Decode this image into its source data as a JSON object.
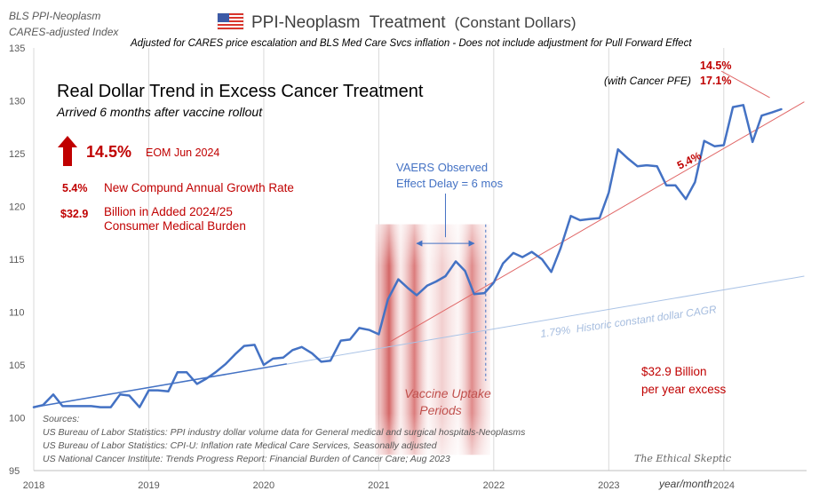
{
  "header": {
    "source_label": "BLS PPI-Neoplasm",
    "source_sub": "CARES-adjusted Index",
    "title": "PPI-Neoplasm  Treatment",
    "title_suffix": "(Constant Dollars)",
    "subtitle": "Adjusted for CARES price escalation and BLS Med Care Svcs inflation - Does not include adjustment for Pull Forward Effect",
    "flag_icon": "us-flag-icon"
  },
  "panel": {
    "headline": "Real Dollar Trend in Excess Cancer Treatment",
    "subhead": "Arrived 6 months after vaccine rollout",
    "arrow_icon": "red-up-arrow-icon",
    "pct_value": "14.5%",
    "pct_note": "EOM Jun 2024",
    "cagr_value": "5.4%",
    "cagr_note": "New Compund Annual Growth Rate",
    "burden_value": "$32.9",
    "burden_note1": "Billion in Added 2024/25",
    "burden_note2": "Consumer Medical Burden"
  },
  "annotations": {
    "pfe_pct": "14.5%",
    "pfe_label": "(with Cancer PFE)",
    "pfe_value": "17.1%",
    "trend_label": "5.4%",
    "vaers_line1": "VAERS Observed",
    "vaers_line2": "Effect Delay = 6 mos",
    "historic_label": "1.79%  Historic constant dollar CAGR",
    "uptake_line1": "Vaccine Uptake",
    "uptake_line2": "Periods",
    "excess_line1": "$32.9 Billion",
    "excess_line2": "per year excess",
    "xaxis_label": "year/month",
    "watermark": "The Ethical Skeptic"
  },
  "sources": {
    "heading": "Sources:",
    "items": [
      "US Bureau of Labor Statistics: PPI industry dollar volume data for General medical and surgical hospitals-Neoplasms",
      "US Bureau of Labor Statistics: CPI-U: Inflation rate Medical Care Services, Seasonally adjusted",
      "US National Cancer Institute: Trends Progress Report: Financial Burden of Cancer Care; Aug 2023"
    ]
  },
  "colors": {
    "series": "#4472c4",
    "trend_red": "#e06666",
    "historic": "#aac3e6",
    "accent_red": "#c00000",
    "axis_text": "#595959",
    "grid": "#d9d9d9"
  },
  "chart_data": {
    "type": "line",
    "xlim": [
      2018.0,
      2024.72
    ],
    "ylim": [
      95,
      135
    ],
    "x_ticks": [
      2018,
      2019,
      2020,
      2021,
      2022,
      2023,
      2024
    ],
    "y_ticks": [
      95,
      100,
      105,
      110,
      115,
      120,
      125,
      130,
      135
    ],
    "grid": "vertical at year boundaries",
    "series": [
      {
        "values": [
          [
            2018.0,
            101.0
          ],
          [
            2018.08,
            101.2
          ],
          [
            2018.17,
            102.2
          ],
          [
            2018.25,
            101.1
          ],
          [
            2018.33,
            101.1
          ],
          [
            2018.42,
            101.1
          ],
          [
            2018.5,
            101.1
          ],
          [
            2018.58,
            101.0
          ],
          [
            2018.67,
            101.0
          ],
          [
            2018.75,
            102.2
          ],
          [
            2018.83,
            102.1
          ],
          [
            2018.92,
            101.0
          ],
          [
            2019.0,
            102.6
          ],
          [
            2019.08,
            102.6
          ],
          [
            2019.17,
            102.5
          ],
          [
            2019.25,
            104.3
          ],
          [
            2019.33,
            104.3
          ],
          [
            2019.42,
            103.2
          ],
          [
            2019.5,
            103.7
          ],
          [
            2019.58,
            104.3
          ],
          [
            2019.67,
            105.1
          ],
          [
            2019.75,
            106.0
          ],
          [
            2019.83,
            106.8
          ],
          [
            2019.92,
            106.9
          ],
          [
            2020.0,
            105.0
          ],
          [
            2020.08,
            105.6
          ],
          [
            2020.17,
            105.7
          ],
          [
            2020.25,
            106.4
          ],
          [
            2020.33,
            106.7
          ],
          [
            2020.42,
            106.1
          ],
          [
            2020.5,
            105.3
          ],
          [
            2020.58,
            105.4
          ],
          [
            2020.67,
            107.3
          ],
          [
            2020.75,
            107.4
          ],
          [
            2020.83,
            108.5
          ],
          [
            2020.92,
            108.3
          ],
          [
            2021.0,
            107.9
          ],
          [
            2021.08,
            111.2
          ],
          [
            2021.17,
            113.1
          ],
          [
            2021.25,
            112.3
          ],
          [
            2021.33,
            111.6
          ],
          [
            2021.42,
            112.5
          ],
          [
            2021.5,
            112.9
          ],
          [
            2021.58,
            113.4
          ],
          [
            2021.67,
            114.8
          ],
          [
            2021.75,
            113.9
          ],
          [
            2021.83,
            111.7
          ],
          [
            2021.92,
            111.8
          ],
          [
            2022.0,
            112.8
          ],
          [
            2022.08,
            114.6
          ],
          [
            2022.17,
            115.6
          ],
          [
            2022.25,
            115.2
          ],
          [
            2022.33,
            115.7
          ],
          [
            2022.42,
            115.0
          ],
          [
            2022.5,
            113.8
          ],
          [
            2022.58,
            116.0
          ],
          [
            2022.67,
            119.1
          ],
          [
            2022.75,
            118.7
          ],
          [
            2022.83,
            118.8
          ],
          [
            2022.92,
            118.9
          ],
          [
            2023.0,
            121.3
          ],
          [
            2023.08,
            125.4
          ],
          [
            2023.17,
            124.5
          ],
          [
            2023.25,
            123.8
          ],
          [
            2023.33,
            123.9
          ],
          [
            2023.42,
            123.8
          ],
          [
            2023.5,
            122.0
          ],
          [
            2023.58,
            122.0
          ],
          [
            2023.67,
            120.7
          ],
          [
            2023.75,
            122.3
          ],
          [
            2023.83,
            126.2
          ],
          [
            2023.92,
            125.7
          ],
          [
            2024.0,
            125.8
          ],
          [
            2024.08,
            129.4
          ],
          [
            2024.17,
            129.6
          ],
          [
            2024.25,
            126.1
          ],
          [
            2024.33,
            128.6
          ],
          [
            2024.42,
            128.9
          ],
          [
            2024.5,
            129.2
          ]
        ]
      }
    ],
    "trend_lines": [
      {
        "label": "5.4%",
        "from": [
          2021.1,
          107.2
        ],
        "to": [
          2024.7,
          129.9
        ]
      },
      {
        "label": "1.79%",
        "from": [
          2018.0,
          101.0
        ],
        "to": [
          2024.7,
          113.4
        ]
      },
      {
        "from": [
          2018.0,
          101.0
        ],
        "to": [
          2020.2,
          105.1
        ]
      }
    ],
    "uptake_band": {
      "from": 2020.97,
      "to": 2021.97,
      "ymin": 96.5,
      "ymax": 118.3
    },
    "vaers_marker": {
      "x": 2021.93,
      "ymin": 103.5,
      "ymax": 118.3,
      "arrow_from": 2021.33,
      "arrow_to": 2021.83,
      "arrow_y": 116.5
    },
    "pfe_callout": {
      "from": [
        2023.98,
        132.8
      ],
      "to": [
        2024.4,
        130.3
      ]
    }
  }
}
